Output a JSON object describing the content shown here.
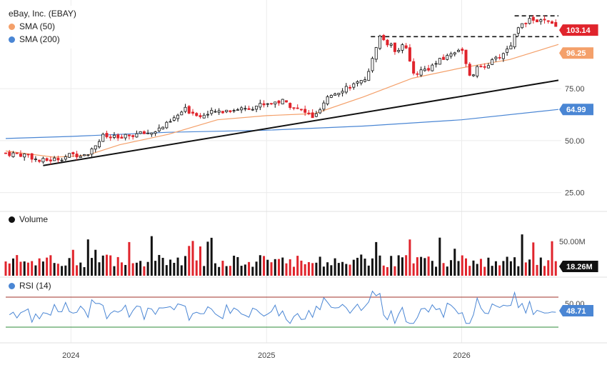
{
  "legend": {
    "title": "eBay, Inc. (EBAY)",
    "sma50_label": "SMA (50)",
    "sma200_label": "SMA (200)",
    "volume_label": "Volume",
    "rsi_label": "RSI (14)"
  },
  "colors": {
    "up": "#111111",
    "down": "#e0242c",
    "sma50": "#f4a06a",
    "sma200": "#4a86d4",
    "rsi": "#4a86d4",
    "rsi_upper": "#a0302a",
    "rsi_lower": "#2e8b3a",
    "trend": "#111111"
  },
  "badges": {
    "price": "103.14",
    "sma50": "96.25",
    "sma200": "64.99",
    "volume": "18.26M",
    "rsi": "48.71"
  },
  "chart_data": {
    "type": "candlestick",
    "title": "eBay, Inc. (EBAY)",
    "x_axis_labels": [
      "2024",
      "2025",
      "2026"
    ],
    "price_axis": {
      "ticks": [
        "75.00",
        "50.00",
        "25.00"
      ],
      "range": [
        18,
        108
      ]
    },
    "volume_axis": {
      "ticks": [
        "50.00M"
      ]
    },
    "rsi_axis": {
      "ticks": [
        "50.00"
      ],
      "overbought": 70,
      "oversold": 30
    },
    "close_anchors": [
      {
        "date": "2023-09-01",
        "close": 44
      },
      {
        "date": "2023-10-15",
        "close": 43
      },
      {
        "date": "2023-11-01",
        "close": 40
      },
      {
        "date": "2023-12-01",
        "close": 41
      },
      {
        "date": "2024-01-01",
        "close": 43
      },
      {
        "date": "2024-02-01",
        "close": 44
      },
      {
        "date": "2024-03-01",
        "close": 52
      },
      {
        "date": "2024-04-01",
        "close": 51
      },
      {
        "date": "2024-05-01",
        "close": 53
      },
      {
        "date": "2024-06-01",
        "close": 54
      },
      {
        "date": "2024-07-01",
        "close": 58
      },
      {
        "date": "2024-08-01",
        "close": 65
      },
      {
        "date": "2024-09-01",
        "close": 62
      },
      {
        "date": "2024-10-01",
        "close": 64
      },
      {
        "date": "2024-11-01",
        "close": 65
      },
      {
        "date": "2024-12-01",
        "close": 66
      },
      {
        "date": "2025-01-01",
        "close": 68
      },
      {
        "date": "2025-02-01",
        "close": 69
      },
      {
        "date": "2025-03-01",
        "close": 65
      },
      {
        "date": "2025-04-01",
        "close": 61
      },
      {
        "date": "2025-05-01",
        "close": 72
      },
      {
        "date": "2025-06-01",
        "close": 76
      },
      {
        "date": "2025-07-01",
        "close": 78
      },
      {
        "date": "2025-07-20",
        "close": 90
      },
      {
        "date": "2025-08-01",
        "close": 100
      },
      {
        "date": "2025-09-01",
        "close": 93
      },
      {
        "date": "2025-09-15",
        "close": 98
      },
      {
        "date": "2025-10-01",
        "close": 82
      },
      {
        "date": "2025-11-01",
        "close": 85
      },
      {
        "date": "2025-12-01",
        "close": 90
      },
      {
        "date": "2026-01-01",
        "close": 95
      },
      {
        "date": "2026-01-15",
        "close": 80
      },
      {
        "date": "2026-02-01",
        "close": 85
      },
      {
        "date": "2026-03-01",
        "close": 88
      },
      {
        "date": "2026-04-01",
        "close": 95
      },
      {
        "date": "2026-04-20",
        "close": 107
      },
      {
        "date": "2026-05-15",
        "close": 108
      },
      {
        "date": "2026-06-10",
        "close": 107
      },
      {
        "date": "2026-07-01",
        "close": 103.14
      }
    ],
    "sma50": [
      {
        "date": "2023-09-01",
        "value": 45
      },
      {
        "date": "2023-12-01",
        "value": 42
      },
      {
        "date": "2024-02-01",
        "value": 43
      },
      {
        "date": "2024-04-01",
        "value": 48
      },
      {
        "date": "2024-07-01",
        "value": 53
      },
      {
        "date": "2024-10-01",
        "value": 60
      },
      {
        "date": "2025-01-01",
        "value": 62
      },
      {
        "date": "2025-04-01",
        "value": 63
      },
      {
        "date": "2025-07-01",
        "value": 71
      },
      {
        "date": "2025-10-01",
        "value": 80
      },
      {
        "date": "2026-01-01",
        "value": 85
      },
      {
        "date": "2026-04-01",
        "value": 89
      },
      {
        "date": "2026-07-01",
        "value": 96.25
      }
    ],
    "sma200": [
      {
        "date": "2023-09-01",
        "value": 51
      },
      {
        "date": "2024-01-01",
        "value": 52
      },
      {
        "date": "2024-07-01",
        "value": 54
      },
      {
        "date": "2025-01-01",
        "value": 55
      },
      {
        "date": "2025-07-01",
        "value": 57
      },
      {
        "date": "2026-01-01",
        "value": 60
      },
      {
        "date": "2026-07-01",
        "value": 64.99
      }
    ],
    "trendline": [
      {
        "date": "2023-11-10",
        "value": 38
      },
      {
        "date": "2026-07-01",
        "value": 79
      }
    ],
    "resistance_lines": [
      {
        "from": "2025-07-15",
        "to": "2026-07-01",
        "value": 100
      },
      {
        "from": "2026-04-10",
        "to": "2026-07-01",
        "value": 110
      }
    ]
  }
}
